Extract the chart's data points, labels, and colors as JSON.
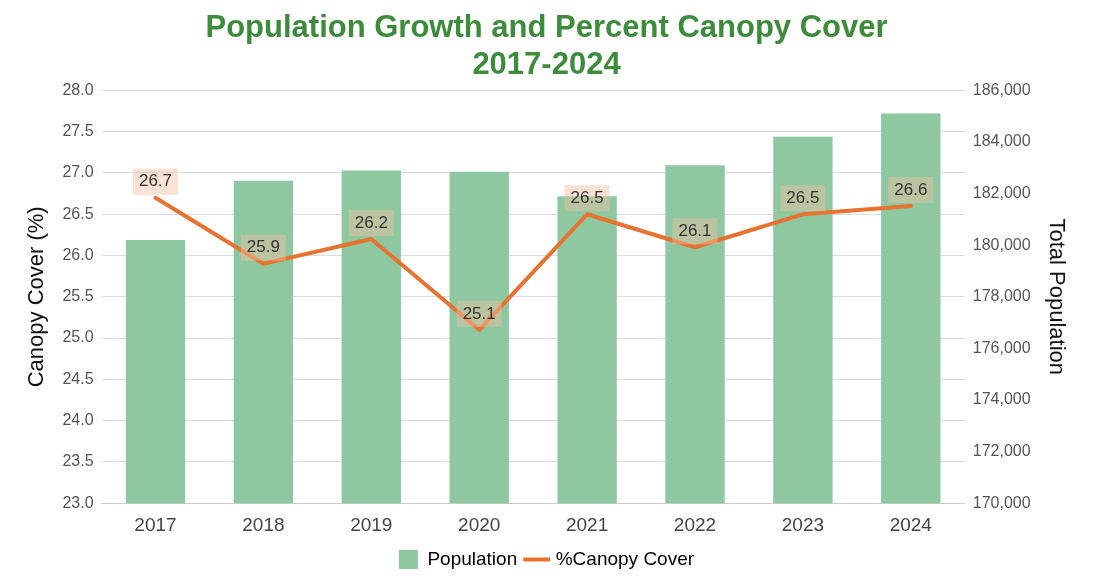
{
  "chart_data": {
    "type": "bar",
    "title": "Population Growth and Percent Canopy Cover\n2017-2024",
    "ylabel": "Canopy Cover (%)",
    "y2label": "Total Population",
    "categories": [
      "2017",
      "2018",
      "2019",
      "2020",
      "2021",
      "2022",
      "2023",
      "2024"
    ],
    "series": [
      {
        "name": "Population",
        "axis": "y2",
        "color": "#8dc8a0",
        "values": [
          180200,
          182500,
          182900,
          182850,
          181900,
          183100,
          184200,
          185100
        ]
      },
      {
        "name": "%Canopy Cover",
        "type": "line",
        "axis": "y",
        "color": "#e8722f",
        "values": [
          26.7,
          25.9,
          26.2,
          25.1,
          26.5,
          26.1,
          26.5,
          26.6
        ],
        "value_labels": [
          "26.7",
          "25.9",
          "26.2",
          "25.1",
          "26.5",
          "26.1",
          "26.5",
          "26.6"
        ]
      }
    ],
    "ylim": [
      23,
      28
    ],
    "yticks": [
      {
        "value": 23,
        "label": "23.0"
      },
      {
        "value": 23.5,
        "label": "23.5"
      },
      {
        "value": 24,
        "label": "24.0"
      },
      {
        "value": 24.5,
        "label": "24.5"
      },
      {
        "value": 25,
        "label": "25.0"
      },
      {
        "value": 25.5,
        "label": "25.5"
      },
      {
        "value": 26,
        "label": "26.0"
      },
      {
        "value": 26.5,
        "label": "26.5"
      },
      {
        "value": 27,
        "label": "27.0"
      },
      {
        "value": 27.5,
        "label": "27.5"
      },
      {
        "value": 28,
        "label": "28.0"
      }
    ],
    "y2lim": [
      170000,
      186000
    ],
    "y2ticks": [
      {
        "value": 170000,
        "label": "170,000"
      },
      {
        "value": 172000,
        "label": "172,000"
      },
      {
        "value": 174000,
        "label": "174,000"
      },
      {
        "value": 176000,
        "label": "176,000"
      },
      {
        "value": 178000,
        "label": "178,000"
      },
      {
        "value": 180000,
        "label": "180,000"
      },
      {
        "value": 182000,
        "label": "182,000"
      },
      {
        "value": 184000,
        "label": "184,000"
      },
      {
        "value": 186000,
        "label": "186,000"
      }
    ],
    "grid": "y",
    "legend": "bottom",
    "marker": "none",
    "line_style": "solid"
  }
}
